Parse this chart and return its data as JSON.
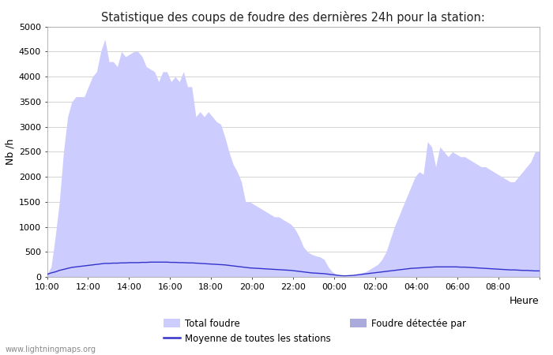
{
  "title": "Statistique des coups de foudre des dernières 24h pour la station:",
  "xlabel": "Heure",
  "ylabel": "Nb /h",
  "ylim": [
    0,
    5000
  ],
  "yticks": [
    0,
    500,
    1000,
    1500,
    2000,
    2500,
    3000,
    3500,
    4000,
    4500,
    5000
  ],
  "xtick_labels": [
    "10:00",
    "12:00",
    "14:00",
    "16:00",
    "18:00",
    "20:00",
    "22:00",
    "00:00",
    "02:00",
    "04:00",
    "06:00",
    "08:00",
    ""
  ],
  "watermark": "www.lightningmaps.org",
  "fill_color": "#ccccff",
  "fill_color2": "#aaaadd",
  "line_color": "#3333cc",
  "background_color": "#ffffff",
  "grid_color": "#cccccc",
  "legend_entries": [
    "Total foudre",
    "Moyenne de toutes les stations",
    "Foudre détectée par"
  ],
  "total_foudre": [
    50,
    200,
    800,
    1500,
    2500,
    3200,
    3500,
    3600,
    3600,
    3600,
    3800,
    4000,
    4100,
    4500,
    4750,
    4300,
    4300,
    4200,
    4500,
    4400,
    4450,
    4500,
    4500,
    4400,
    4200,
    4150,
    4100,
    3900,
    4100,
    4100,
    3900,
    4000,
    3900,
    4100,
    3800,
    3800,
    3200,
    3300,
    3200,
    3300,
    3200,
    3100,
    3050,
    2800,
    2500,
    2250,
    2100,
    1900,
    1500,
    1500,
    1450,
    1400,
    1350,
    1300,
    1250,
    1200,
    1200,
    1150,
    1100,
    1050,
    950,
    800,
    600,
    500,
    450,
    420,
    400,
    350,
    200,
    100,
    50,
    20,
    10,
    20,
    30,
    50,
    80,
    100,
    150,
    200,
    250,
    350,
    500,
    750,
    1000,
    1200,
    1400,
    1600,
    1800,
    2000,
    2100,
    2050,
    2700,
    2600,
    2200,
    2600,
    2500,
    2400,
    2500,
    2450,
    2400,
    2400,
    2350,
    2300,
    2250,
    2200,
    2200,
    2150,
    2100,
    2050,
    2000,
    1950,
    1900,
    1900,
    2000,
    2100,
    2200,
    2300,
    2500,
    2500
  ],
  "moyenne": [
    50,
    80,
    100,
    130,
    150,
    170,
    190,
    200,
    210,
    220,
    230,
    240,
    250,
    260,
    270,
    270,
    275,
    275,
    280,
    280,
    285,
    285,
    285,
    290,
    290,
    295,
    295,
    295,
    295,
    295,
    290,
    290,
    285,
    285,
    280,
    280,
    275,
    270,
    265,
    260,
    255,
    250,
    245,
    240,
    230,
    220,
    210,
    200,
    190,
    180,
    175,
    170,
    165,
    160,
    155,
    150,
    145,
    140,
    135,
    130,
    120,
    110,
    100,
    90,
    80,
    75,
    70,
    65,
    55,
    45,
    35,
    25,
    20,
    25,
    30,
    40,
    50,
    60,
    70,
    80,
    90,
    100,
    110,
    120,
    130,
    140,
    150,
    160,
    170,
    175,
    180,
    185,
    190,
    195,
    200,
    200,
    200,
    200,
    200,
    200,
    195,
    195,
    190,
    185,
    180,
    175,
    170,
    165,
    160,
    155,
    150,
    145,
    140,
    140,
    135,
    130,
    130,
    125,
    120,
    120
  ]
}
